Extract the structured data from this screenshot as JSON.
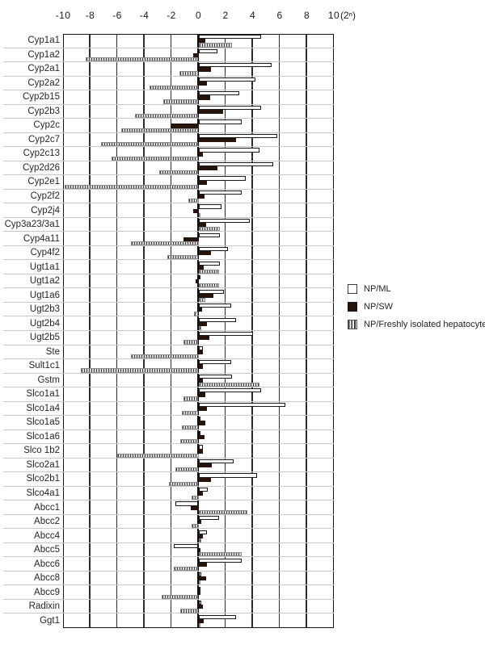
{
  "chart_data": {
    "type": "bar",
    "orientation": "horizontal",
    "x_axis_unit": "(2ⁿ)",
    "xlim": [
      -10,
      10
    ],
    "x_ticks": [
      -10,
      -8,
      -6,
      -4,
      -2,
      0,
      2,
      4,
      6,
      8,
      10
    ],
    "x_tick_labels": [
      "-10",
      "-8",
      "-6",
      "-4",
      "-2",
      "0",
      "2",
      "4",
      "6",
      "8",
      "10"
    ],
    "grid": "vertical lines every 2 units, light horizontal row separators",
    "legend_position": "right-middle",
    "categories": [
      "Cyp1a1",
      "Cyp1a2",
      "Cyp2a1",
      "Cyp2a2",
      "Cyp2b15",
      "Cyp2b3",
      "Cyp2c",
      "Cyp2c7",
      "Cyp2c13",
      "Cyp2d26",
      "Cyp2e1",
      "Cyp2f2",
      "Cyp2j4",
      "Cyp3a23/3a1",
      "Cyp4a11",
      "Cyp4f2",
      "Ugt1a1",
      "Ugt1a2",
      "Ugt1a6",
      "Ugt2b3",
      "Ugt2b4",
      "Ugt2b5",
      "Ste",
      "Sult1c1",
      "Gstm",
      "Slco1a1",
      "Slco1a4",
      "Slco1a5",
      "Slco1a6",
      "Slco 1b2",
      "Slco2a1",
      "Slco2b1",
      "Slco4a1",
      "Abcc1",
      "Abcc2",
      "Abcc4",
      "Abcc5",
      "Abcc6",
      "Abcc8",
      "Abcc9",
      "Radixin",
      "Ggt1"
    ],
    "series": [
      {
        "name": "NP/ML",
        "style": "open",
        "fill": "#ffffff",
        "values": [
          4.6,
          1.4,
          5.4,
          4.2,
          3.0,
          4.6,
          3.2,
          5.8,
          4.5,
          5.5,
          3.5,
          3.2,
          1.7,
          3.8,
          1.6,
          2.2,
          1.6,
          0.1,
          1.9,
          2.4,
          2.8,
          4.0,
          0.3,
          2.4,
          2.5,
          4.6,
          6.4,
          0.1,
          0.1,
          0.3,
          2.6,
          4.3,
          0.7,
          -1.7,
          1.5,
          0.6,
          -1.8,
          3.2,
          0.2,
          0.15,
          0.2,
          2.75
        ]
      },
      {
        "name": "NP/SW",
        "style": "solid",
        "fill": "#261309",
        "values": [
          0.5,
          -0.4,
          0.9,
          0.6,
          0.85,
          1.8,
          -2.0,
          2.8,
          0.3,
          1.4,
          0.6,
          0.45,
          -0.4,
          0.55,
          -1.1,
          0.9,
          0.4,
          -0.2,
          1.1,
          0.25,
          0.65,
          0.8,
          0.3,
          0.35,
          0.3,
          0.5,
          0.6,
          0.5,
          0.45,
          0.3,
          1.0,
          0.9,
          0.3,
          -0.55,
          0.2,
          0.3,
          0.1,
          0.6,
          0.55,
          0.1,
          0.35,
          0.4
        ]
      },
      {
        "name": "NP/Freshly isolated hepatocytes",
        "style": "hatched-vertical",
        "fill": "#3e3e3e",
        "values": [
          2.5,
          -8.3,
          -1.4,
          -3.6,
          -2.6,
          -4.7,
          -5.7,
          -7.2,
          -6.4,
          -2.9,
          -9.9,
          -0.75,
          0.1,
          1.6,
          -5.0,
          -2.3,
          1.5,
          1.5,
          0.5,
          -0.3,
          0.2,
          -1.1,
          -5.0,
          -8.7,
          4.5,
          -1.1,
          -1.2,
          -1.2,
          -1.35,
          -6.0,
          -1.7,
          -2.2,
          -0.5,
          3.6,
          -0.5,
          0.2,
          3.2,
          -1.8,
          0.1,
          -2.7,
          -1.35,
          0.1
        ]
      }
    ]
  }
}
